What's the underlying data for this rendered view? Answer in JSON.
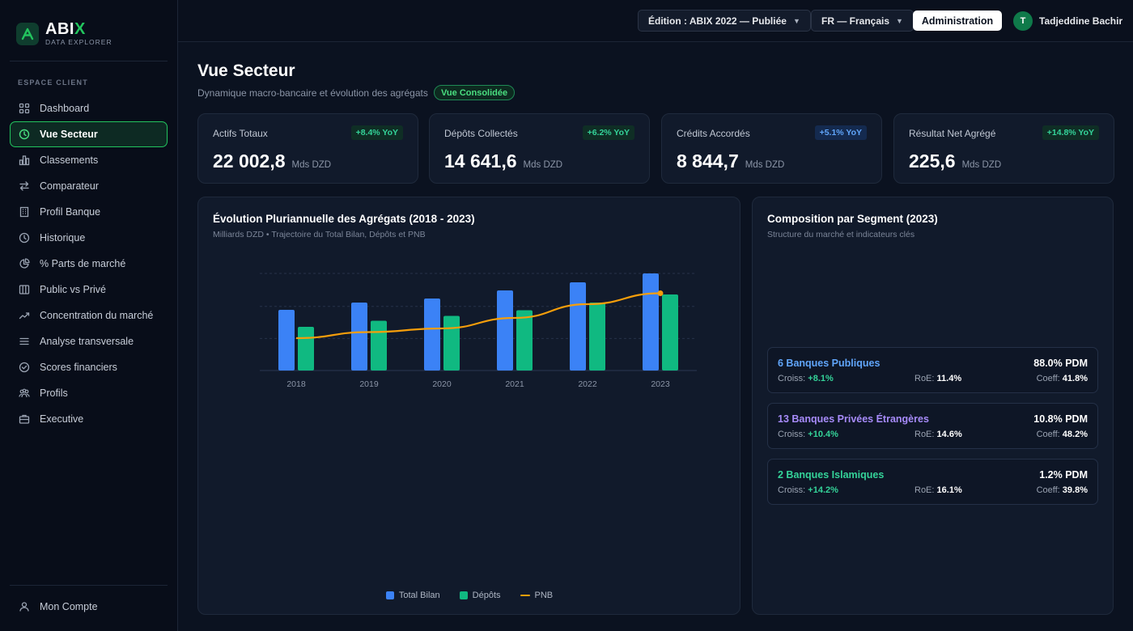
{
  "brand": {
    "title": "ABI",
    "title_x": "X",
    "subtitle": "DATA EXPLORER"
  },
  "sidebar": {
    "section": "ESPACE CLIENT",
    "items": [
      {
        "label": "Dashboard",
        "icon": "grid-icon"
      },
      {
        "label": "Vue Secteur",
        "icon": "clock-icon",
        "active": true
      },
      {
        "label": "Classements",
        "icon": "bar-chart-icon"
      },
      {
        "label": "Comparateur",
        "icon": "swap-icon"
      },
      {
        "label": "Profil Banque",
        "icon": "building-icon"
      },
      {
        "label": "Historique",
        "icon": "history-icon"
      },
      {
        "label": "% Parts de marché",
        "icon": "pie-icon"
      },
      {
        "label": "Public vs Privé",
        "icon": "columns-icon"
      },
      {
        "label": "Concentration du marché",
        "icon": "trend-icon"
      },
      {
        "label": "Analyse transversale",
        "icon": "list-icon"
      },
      {
        "label": "Scores financiers",
        "icon": "check-circle-icon"
      },
      {
        "label": "Profils",
        "icon": "users-icon"
      },
      {
        "label": "Executive",
        "icon": "briefcase-icon"
      }
    ],
    "account": "Mon Compte"
  },
  "topbar": {
    "edition": "Édition : ABIX 2022 — Publiée",
    "language": "FR — Français",
    "admin": "Administration",
    "user_initial": "T",
    "user_name": "Tadjeddine Bachir"
  },
  "header": {
    "title": "Vue Secteur",
    "subtitle": "Dynamique macro-bancaire et évolution des agrégats",
    "badge": "Vue Consolidée"
  },
  "kpis": [
    {
      "label": "Actifs Totaux",
      "delta": "+8.4% YoY",
      "value": "22 002,8",
      "unit": "Mds DZD"
    },
    {
      "label": "Dépôts Collectés",
      "delta": "+6.2% YoY",
      "value": "14 641,6",
      "unit": "Mds DZD"
    },
    {
      "label": "Crédits Accordés",
      "delta": "+5.1% YoY",
      "value": "8 844,7",
      "unit": "Mds DZD"
    },
    {
      "label": "Résultat Net Agrégé",
      "delta": "+14.8% YoY",
      "value": "225,6",
      "unit": "Mds DZD"
    }
  ],
  "evolution": {
    "title": "Évolution Pluriannuelle des Agrégats (2018 - 2023)",
    "subtitle": "Milliards DZD • Trajectoire du Total Bilan, Dépôts et PNB"
  },
  "chart_data": {
    "type": "bar",
    "title": "Évolution Pluriannuelle des Agrégats (2018 - 2023)",
    "categories": [
      "2018",
      "2019",
      "2020",
      "2021",
      "2022",
      "2023"
    ],
    "series": [
      {
        "name": "Total Bilan",
        "type": "bar",
        "color": "#3b82f6",
        "values": [
          15000,
          16800,
          17800,
          19800,
          21800,
          24000
        ]
      },
      {
        "name": "Dépôts",
        "type": "bar",
        "color": "#10b981",
        "values": [
          10800,
          12300,
          13500,
          14900,
          16800,
          18800
        ]
      },
      {
        "name": "PNB",
        "type": "line",
        "color": "#f59e0b",
        "values": [
          8000,
          9500,
          10400,
          13000,
          16400,
          19100
        ]
      }
    ],
    "ylim": [
      0,
      24000
    ],
    "grid": true,
    "legend": "bottom"
  },
  "composition": {
    "title": "Composition par Segment (2023)",
    "subtitle": "Structure du marché et indicateurs clés",
    "labels": {
      "crois": "Croiss:",
      "roe": "RoE:",
      "coeff": "Coeff:"
    },
    "segments": [
      {
        "name": "6 Banques Publiques",
        "color": "#60a5fa",
        "pdm": "88.0% PDM",
        "crois": "+8.1%",
        "roe": "11.4%",
        "coeff": "41.8%"
      },
      {
        "name": "13 Banques Privées Étrangères",
        "color": "#a78bfa",
        "pdm": "10.8% PDM",
        "crois": "+10.4%",
        "roe": "14.6%",
        "coeff": "48.2%"
      },
      {
        "name": "2 Banques Islamiques",
        "color": "#34d399",
        "pdm": "1.2% PDM",
        "crois": "+14.2%",
        "roe": "16.1%",
        "coeff": "39.8%"
      }
    ]
  }
}
